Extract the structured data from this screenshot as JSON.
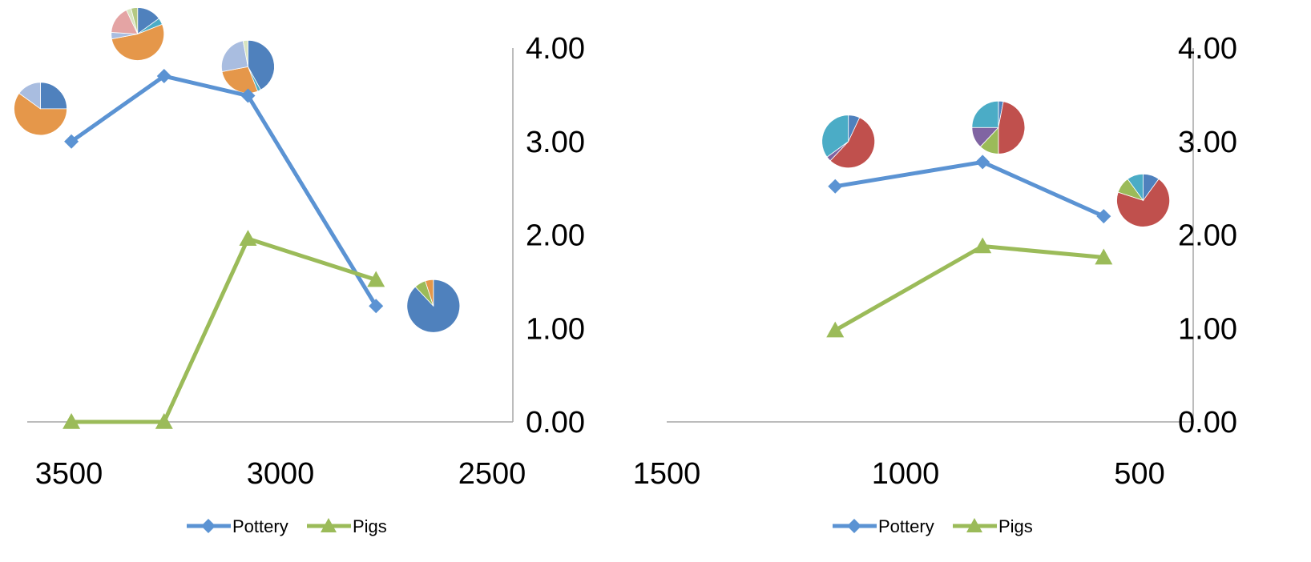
{
  "chart_data": [
    {
      "type": "line",
      "x_reversed": true,
      "xlim": [
        3600,
        2500
      ],
      "ylim": [
        0,
        4
      ],
      "x_ticks": [
        "3500",
        "3000",
        "2500"
      ],
      "y_ticks": [
        "4.00",
        "3.00",
        "2.00",
        "1.00",
        "0.00"
      ],
      "y_axis_position": "right",
      "grid": false,
      "legend_position": "bottom",
      "series": [
        {
          "name": "Pottery",
          "color": "#5b93d3",
          "marker": "diamond",
          "x": [
            3500,
            3290,
            3100,
            2810
          ],
          "y": [
            3.0,
            3.7,
            3.49,
            1.24
          ]
        },
        {
          "name": "Pigs",
          "color": "#9bbb59",
          "marker": "triangle",
          "x": [
            3500,
            3290,
            3100,
            2810
          ],
          "y": [
            0.0,
            0.0,
            1.96,
            1.52
          ]
        }
      ],
      "pie_markers": [
        {
          "x": 3570,
          "y": 3.35,
          "slices": [
            {
              "value": 25,
              "color": "#4f81bd"
            },
            {
              "value": 60,
              "color": "#e5974a"
            },
            {
              "value": 15,
              "color": "#a9bde0"
            }
          ]
        },
        {
          "x": 3350,
          "y": 4.15,
          "slices": [
            {
              "value": 15,
              "color": "#4f81bd"
            },
            {
              "value": 4,
              "color": "#4bacc6"
            },
            {
              "value": 53,
              "color": "#e5974a"
            },
            {
              "value": 4,
              "color": "#a9bde0"
            },
            {
              "value": 17,
              "color": "#e4a4a4"
            },
            {
              "value": 3,
              "color": "#d8e4c0"
            },
            {
              "value": 4,
              "color": "#b4c983"
            }
          ]
        },
        {
          "x": 3100,
          "y": 3.8,
          "slices": [
            {
              "value": 42,
              "color": "#4f81bd"
            },
            {
              "value": 2,
              "color": "#4bacc6"
            },
            {
              "value": 28,
              "color": "#e5974a"
            },
            {
              "value": 25,
              "color": "#a9bde0"
            },
            {
              "value": 3,
              "color": "#d8e4c0"
            }
          ]
        },
        {
          "x": 2680,
          "y": 1.24,
          "slices": [
            {
              "value": 88,
              "color": "#4f81bd"
            },
            {
              "value": 7,
              "color": "#9bbb59"
            },
            {
              "value": 5,
              "color": "#e5974a"
            }
          ]
        }
      ]
    },
    {
      "type": "line",
      "x_reversed": true,
      "xlim": [
        1500,
        500
      ],
      "ylim": [
        0,
        4
      ],
      "x_ticks": [
        "1500",
        "1000",
        "500"
      ],
      "y_ticks": [
        "4.00",
        "3.00",
        "2.00",
        "1.00",
        "0.00"
      ],
      "y_axis_position": "right",
      "grid": false,
      "legend_position": "bottom",
      "series": [
        {
          "name": "Pottery",
          "color": "#5b93d3",
          "marker": "diamond",
          "x": [
            1180,
            900,
            670
          ],
          "y": [
            2.52,
            2.78,
            2.2
          ]
        },
        {
          "name": "Pigs",
          "color": "#9bbb59",
          "marker": "triangle",
          "x": [
            1180,
            900,
            670
          ],
          "y": [
            0.98,
            1.88,
            1.76
          ]
        }
      ],
      "pie_markers": [
        {
          "x": 1155,
          "y": 3.0,
          "slices": [
            {
              "value": 7,
              "color": "#4f81bd"
            },
            {
              "value": 55,
              "color": "#c0504d"
            },
            {
              "value": 3,
              "color": "#8064a2"
            },
            {
              "value": 35,
              "color": "#4bacc6"
            }
          ]
        },
        {
          "x": 870,
          "y": 3.15,
          "slices": [
            {
              "value": 3,
              "color": "#4f81bd"
            },
            {
              "value": 47,
              "color": "#c0504d"
            },
            {
              "value": 12,
              "color": "#9bbb59"
            },
            {
              "value": 13,
              "color": "#8064a2"
            },
            {
              "value": 25,
              "color": "#4bacc6"
            }
          ]
        },
        {
          "x": 595,
          "y": 2.37,
          "slices": [
            {
              "value": 10,
              "color": "#4f81bd"
            },
            {
              "value": 70,
              "color": "#c0504d"
            },
            {
              "value": 10,
              "color": "#9bbb59"
            },
            {
              "value": 10,
              "color": "#4bacc6"
            }
          ]
        }
      ]
    }
  ]
}
